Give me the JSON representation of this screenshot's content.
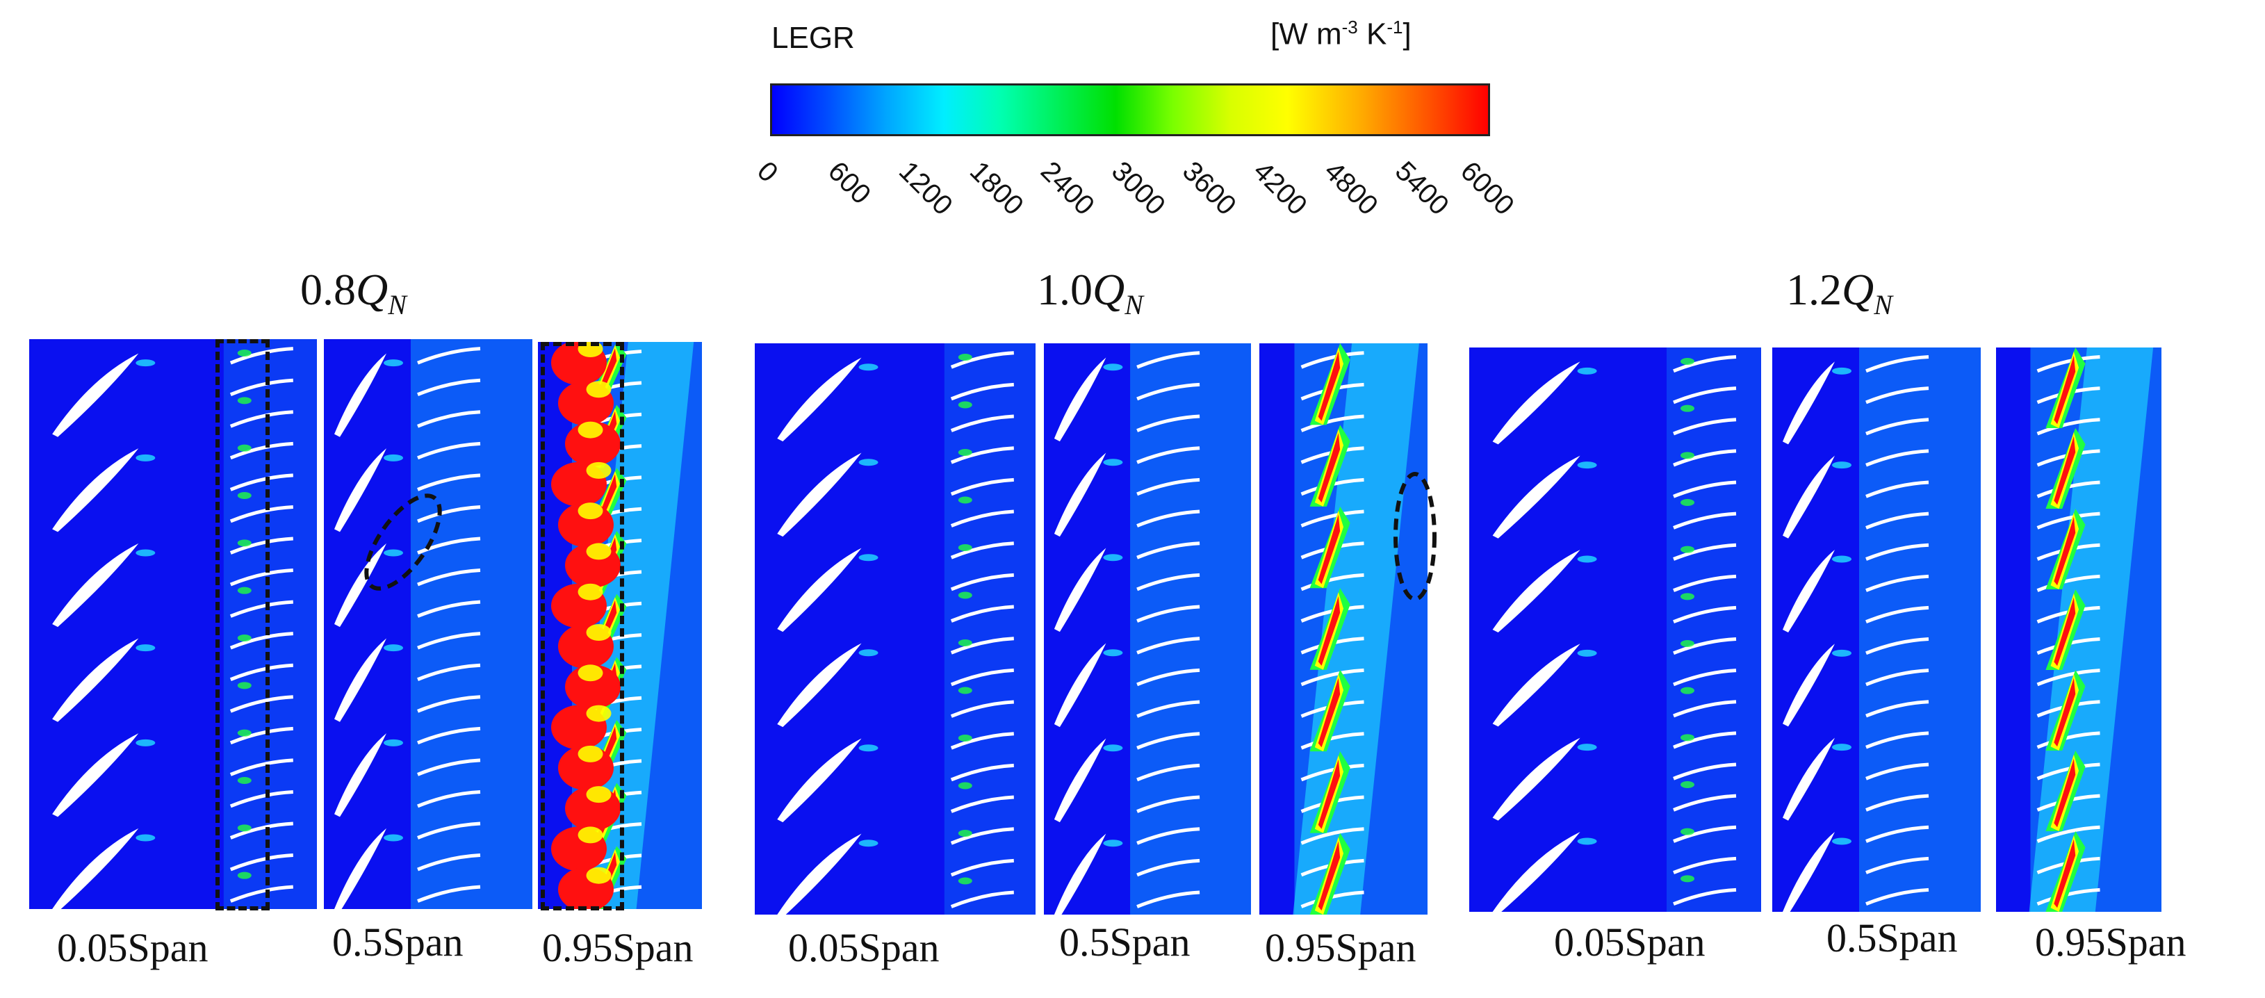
{
  "legend": {
    "title": "LEGR",
    "unit_prefix": "[W m",
    "unit_exp1": "-3",
    "unit_mid": " K",
    "unit_exp2": "-1",
    "unit_suffix": "]",
    "ticks": [
      "0",
      "600",
      "1200",
      "1800",
      "2400",
      "3000",
      "3600",
      "4200",
      "4800",
      "5400",
      "6000"
    ],
    "min": 0,
    "max": 6000,
    "colors": [
      "#0000ff",
      "#00eeff",
      "#00e000",
      "#ffff00",
      "#ff0000"
    ]
  },
  "conditions": [
    {
      "value": "0.8",
      "symbol": "Q",
      "subscript": "N",
      "spans": [
        "0.05Span",
        "0.5Span",
        "0.95Span"
      ]
    },
    {
      "value": "1.0",
      "symbol": "Q",
      "subscript": "N",
      "spans": [
        "0.05Span",
        "0.5Span",
        "0.95Span"
      ]
    },
    {
      "value": "1.2",
      "symbol": "Q",
      "subscript": "N",
      "spans": [
        "0.05Span",
        "0.5Span",
        "0.95Span"
      ]
    }
  ]
}
